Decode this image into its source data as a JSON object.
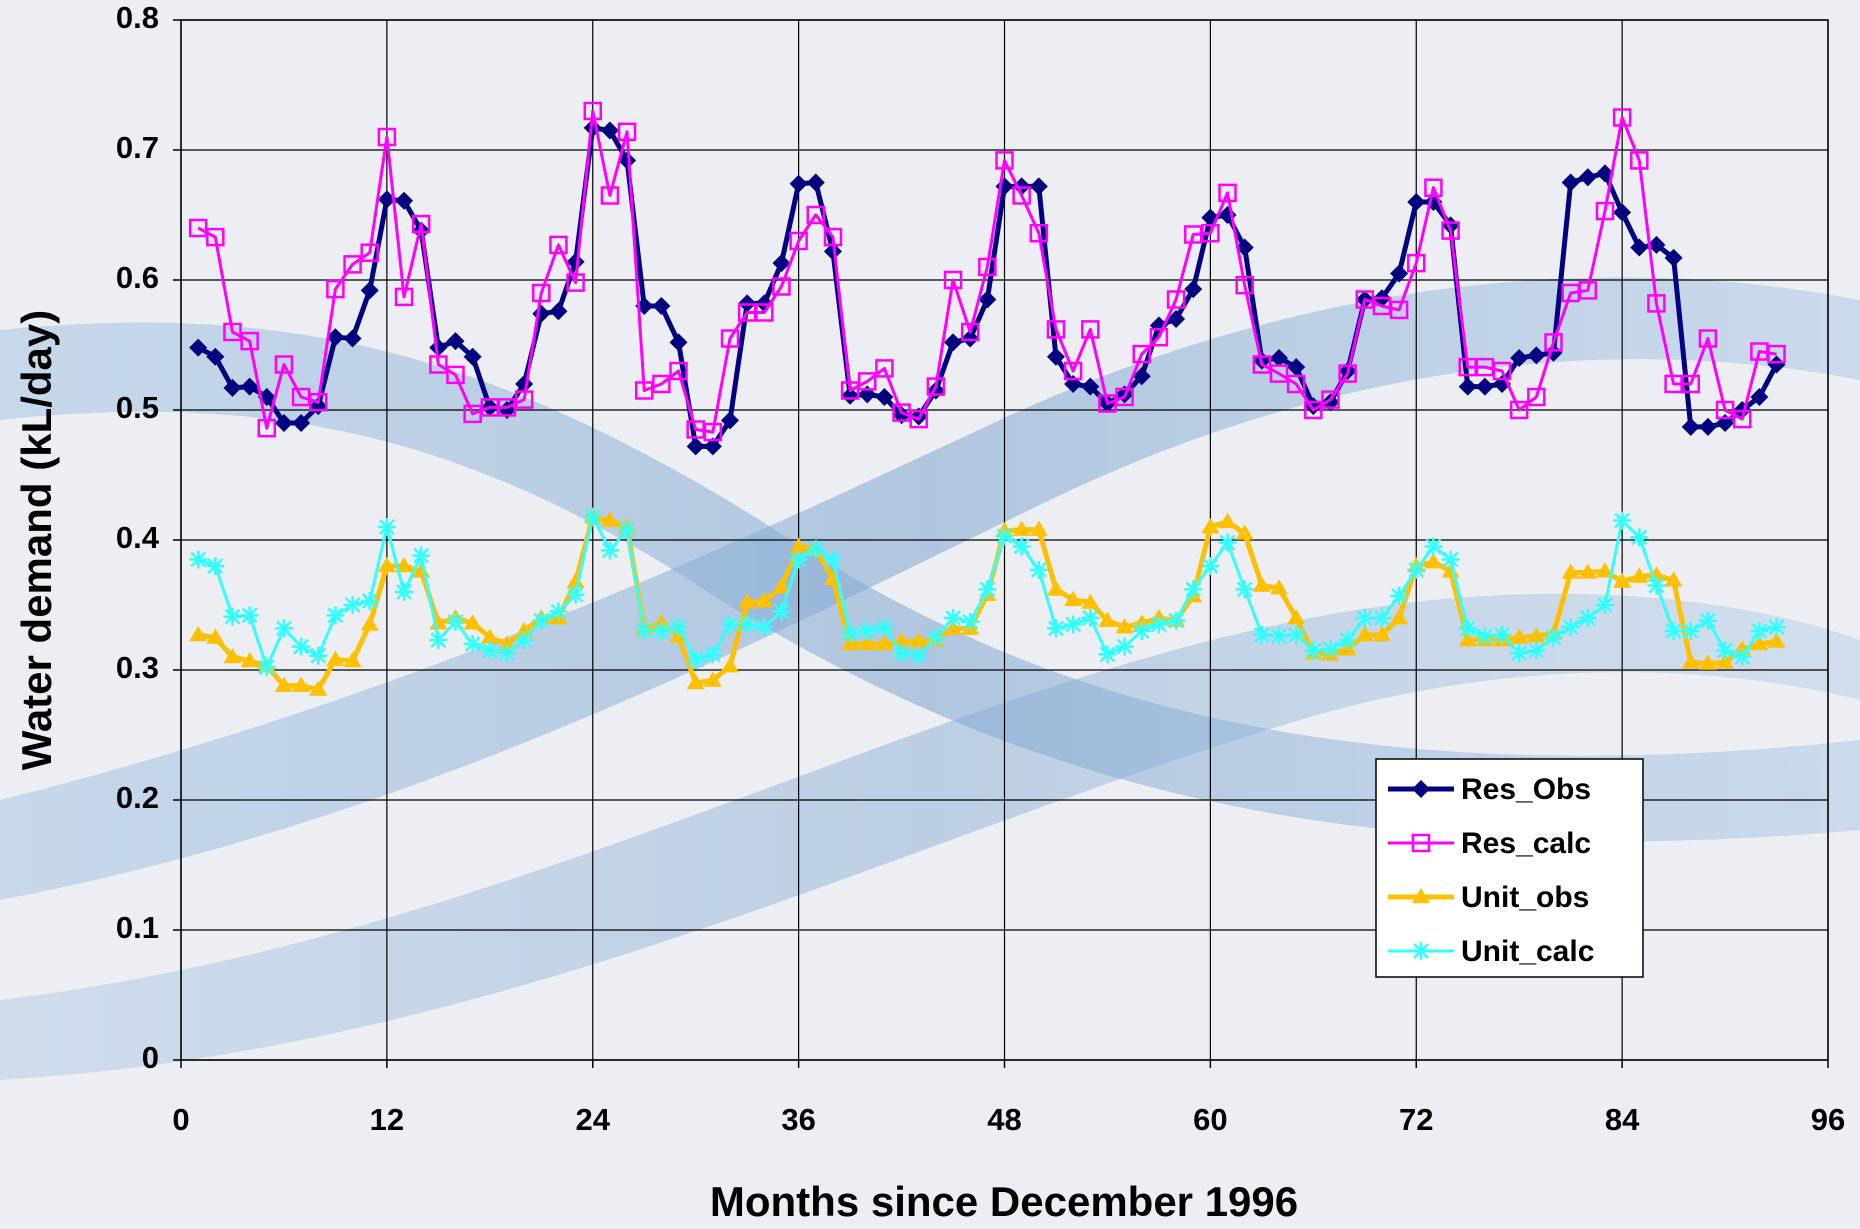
{
  "chart_data": {
    "type": "line",
    "xlabel": "Months since December 1996",
    "ylabel": "Water demand (kL/day)",
    "xlim": [
      0,
      96
    ],
    "ylim": [
      0,
      0.8
    ],
    "xticks": [
      0,
      12,
      24,
      36,
      48,
      60,
      72,
      84,
      96
    ],
    "yticks": [
      0,
      0.1,
      0.2,
      0.3,
      0.4,
      0.5,
      0.6,
      0.7,
      0.8
    ],
    "grid": true,
    "legend": "lower right",
    "x": [
      1,
      2,
      3,
      4,
      5,
      6,
      7,
      8,
      9,
      10,
      11,
      12,
      13,
      14,
      15,
      16,
      17,
      18,
      19,
      20,
      21,
      22,
      23,
      24,
      25,
      26,
      27,
      28,
      29,
      30,
      31,
      32,
      33,
      34,
      35,
      36,
      37,
      38,
      39,
      40,
      41,
      42,
      43,
      44,
      45,
      46,
      47,
      48,
      49,
      50,
      51,
      52,
      53,
      54,
      55,
      56,
      57,
      58,
      59,
      60,
      61,
      62,
      63,
      64,
      65,
      66,
      67,
      68,
      69,
      70,
      71,
      72,
      73,
      74,
      75,
      76,
      77,
      78,
      79,
      80,
      81,
      82,
      83,
      84,
      85,
      86,
      87,
      88,
      89,
      90,
      91,
      92,
      93
    ],
    "series": [
      {
        "name": "Res_Obs",
        "color": "#000080",
        "marker": "diamond",
        "line_width": 5,
        "values": [
          0.548,
          0.541,
          0.517,
          0.518,
          0.51,
          0.49,
          0.49,
          0.503,
          0.556,
          0.555,
          0.592,
          0.662,
          0.661,
          0.638,
          0.548,
          0.553,
          0.541,
          0.502,
          0.5,
          0.52,
          0.574,
          0.576,
          0.614,
          0.717,
          0.715,
          0.692,
          0.58,
          0.58,
          0.552,
          0.472,
          0.472,
          0.492,
          0.582,
          0.582,
          0.613,
          0.674,
          0.675,
          0.622,
          0.511,
          0.512,
          0.51,
          0.496,
          0.495,
          0.515,
          0.552,
          0.555,
          0.585,
          0.672,
          0.672,
          0.672,
          0.541,
          0.52,
          0.518,
          0.505,
          0.512,
          0.526,
          0.565,
          0.57,
          0.593,
          0.648,
          0.65,
          0.625,
          0.538,
          0.54,
          0.533,
          0.503,
          0.506,
          0.53,
          0.585,
          0.586,
          0.605,
          0.66,
          0.66,
          0.642,
          0.518,
          0.518,
          0.52,
          0.54,
          0.542,
          0.544,
          0.675,
          0.679,
          0.682,
          0.652,
          0.625,
          0.627,
          0.617,
          0.487,
          0.487,
          0.49,
          0.5,
          0.51,
          0.535
        ]
      },
      {
        "name": "Res_calc",
        "color": "#ff00ff",
        "marker": "square",
        "line_width": 3,
        "values": [
          0.64,
          0.633,
          0.56,
          0.553,
          0.486,
          0.535,
          0.51,
          0.506,
          0.593,
          0.612,
          0.621,
          0.71,
          0.587,
          0.643,
          0.535,
          0.527,
          0.497,
          0.502,
          0.502,
          0.508,
          0.59,
          0.627,
          0.598,
          0.73,
          0.665,
          0.714,
          0.515,
          0.52,
          0.53,
          0.485,
          0.483,
          0.555,
          0.575,
          0.575,
          0.595,
          0.63,
          0.65,
          0.633,
          0.515,
          0.522,
          0.532,
          0.498,
          0.493,
          0.518,
          0.6,
          0.56,
          0.61,
          0.692,
          0.665,
          0.636,
          0.562,
          0.53,
          0.562,
          0.505,
          0.51,
          0.543,
          0.556,
          0.585,
          0.635,
          0.636,
          0.667,
          0.596,
          0.535,
          0.528,
          0.52,
          0.5,
          0.508,
          0.528,
          0.585,
          0.58,
          0.577,
          0.613,
          0.671,
          0.638,
          0.533,
          0.533,
          0.53,
          0.5,
          0.51,
          0.552,
          0.59,
          0.592,
          0.653,
          0.725,
          0.692,
          0.582,
          0.52,
          0.52,
          0.555,
          0.5,
          0.493,
          0.545,
          0.543
        ]
      },
      {
        "name": "Unit_obs",
        "color": "#ffc000",
        "marker": "triangle",
        "line_width": 5,
        "values": [
          0.327,
          0.325,
          0.31,
          0.307,
          0.303,
          0.288,
          0.288,
          0.285,
          0.308,
          0.307,
          0.335,
          0.38,
          0.38,
          0.376,
          0.336,
          0.34,
          0.336,
          0.325,
          0.32,
          0.33,
          0.34,
          0.34,
          0.368,
          0.418,
          0.415,
          0.41,
          0.332,
          0.336,
          0.326,
          0.29,
          0.292,
          0.303,
          0.352,
          0.353,
          0.364,
          0.395,
          0.393,
          0.37,
          0.32,
          0.32,
          0.32,
          0.322,
          0.322,
          0.323,
          0.332,
          0.332,
          0.358,
          0.407,
          0.408,
          0.408,
          0.362,
          0.354,
          0.352,
          0.338,
          0.333,
          0.336,
          0.34,
          0.338,
          0.357,
          0.41,
          0.414,
          0.405,
          0.365,
          0.363,
          0.34,
          0.313,
          0.312,
          0.316,
          0.327,
          0.327,
          0.34,
          0.38,
          0.383,
          0.376,
          0.323,
          0.323,
          0.323,
          0.325,
          0.326,
          0.328,
          0.375,
          0.375,
          0.376,
          0.368,
          0.372,
          0.373,
          0.369,
          0.306,
          0.305,
          0.306,
          0.316,
          0.32,
          0.322
        ]
      },
      {
        "name": "Unit_calc",
        "color": "#33ffff",
        "marker": "asterisk",
        "line_width": 3,
        "values": [
          0.385,
          0.38,
          0.341,
          0.342,
          0.302,
          0.332,
          0.318,
          0.311,
          0.342,
          0.35,
          0.353,
          0.41,
          0.36,
          0.388,
          0.323,
          0.337,
          0.32,
          0.315,
          0.313,
          0.323,
          0.338,
          0.345,
          0.358,
          0.418,
          0.392,
          0.408,
          0.33,
          0.33,
          0.333,
          0.308,
          0.312,
          0.335,
          0.335,
          0.333,
          0.345,
          0.385,
          0.393,
          0.385,
          0.328,
          0.33,
          0.333,
          0.313,
          0.311,
          0.325,
          0.34,
          0.337,
          0.362,
          0.403,
          0.395,
          0.377,
          0.332,
          0.335,
          0.34,
          0.312,
          0.318,
          0.33,
          0.335,
          0.338,
          0.362,
          0.38,
          0.398,
          0.362,
          0.327,
          0.326,
          0.327,
          0.315,
          0.316,
          0.323,
          0.34,
          0.34,
          0.357,
          0.377,
          0.395,
          0.385,
          0.332,
          0.326,
          0.327,
          0.313,
          0.315,
          0.325,
          0.333,
          0.34,
          0.35,
          0.415,
          0.402,
          0.365,
          0.33,
          0.33,
          0.338,
          0.315,
          0.31,
          0.33,
          0.333
        ]
      }
    ]
  }
}
